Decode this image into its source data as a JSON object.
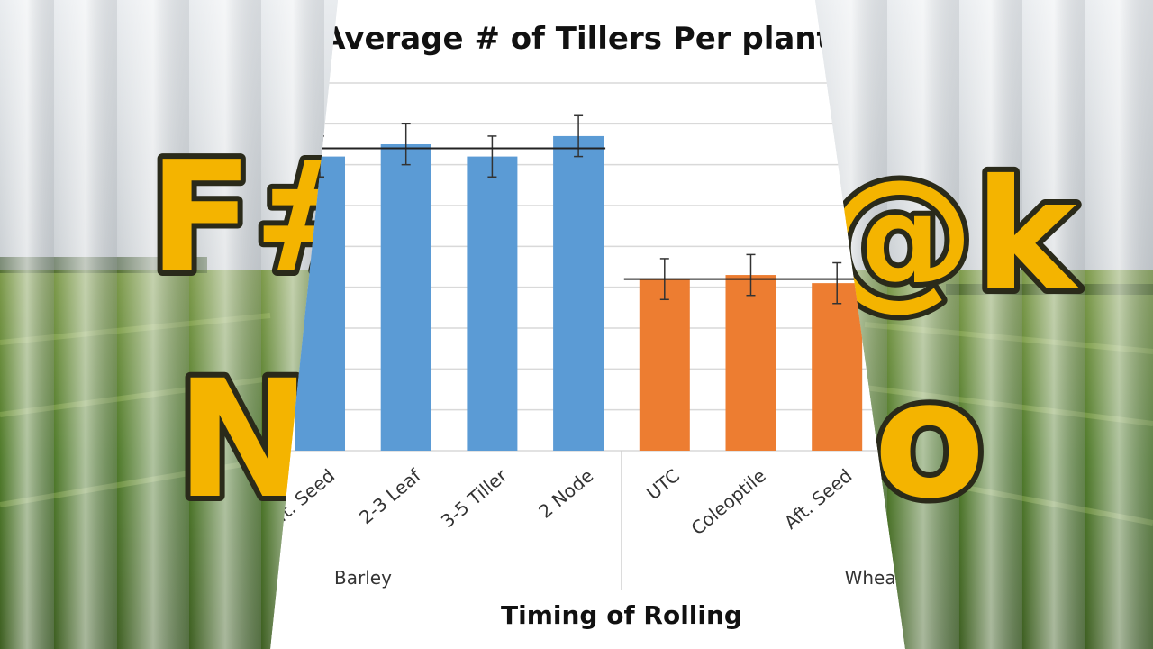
{
  "overlay_text": [
    "F#",
    "N",
    "@k",
    "o"
  ],
  "chart_data": {
    "type": "bar",
    "title": "Average # of Tillers Per plant",
    "x_label": "Timing of Rolling",
    "ylim": [
      0,
      9
    ],
    "yticks": [
      0,
      1,
      2,
      3,
      4,
      5,
      6,
      7,
      8,
      9
    ],
    "grid": true,
    "series": [
      {
        "name": "Barley",
        "color": "#5b9bd5",
        "categories": [
          "Aft. Seed",
          "2-3 Leaf",
          "3-5 Tiller",
          "2 Node"
        ],
        "values": [
          7.2,
          7.5,
          7.2,
          7.7
        ],
        "errors": [
          0.5,
          0.5,
          0.5,
          0.5
        ],
        "mean": 7.4
      },
      {
        "name": "Wheat",
        "color": "#ed7d31",
        "categories": [
          "UTC",
          "Coleoptile",
          "Aft. Seed"
        ],
        "values": [
          4.2,
          4.3,
          4.1
        ],
        "errors": [
          0.5,
          0.5,
          0.5
        ],
        "mean": 4.2
      }
    ]
  }
}
